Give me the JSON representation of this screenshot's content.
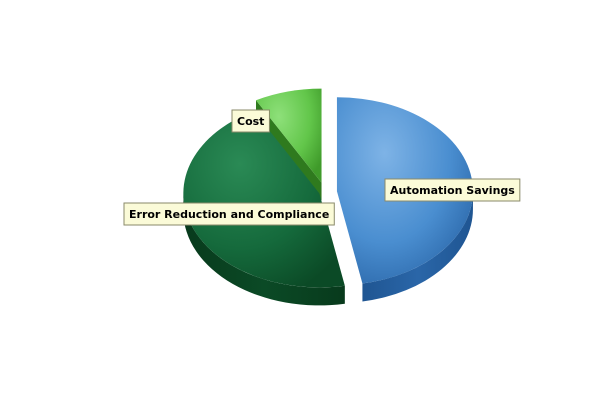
{
  "chart_data": {
    "type": "pie",
    "style": "3d-exploded",
    "title": "",
    "categories": [
      "Automation Savings",
      "Error Reduction and Compliance",
      "Cost"
    ],
    "values": [
      47,
      45,
      8
    ],
    "unit": "percent (estimated share)",
    "legend": "none",
    "colors": {
      "Automation Savings": {
        "light": "#7eb3e6",
        "mid": "#4a8ed0",
        "dark": "#2a66a8",
        "side": "#1f5592"
      },
      "Error Reduction and Compliance": {
        "light": "#2a8a55",
        "mid": "#156a3c",
        "dark": "#0b4a26",
        "side": "#083a1c"
      },
      "Cost": {
        "light": "#8ee07a",
        "mid": "#62c64a",
        "dark": "#3f9a2a",
        "side": "#2f7a1e"
      }
    }
  }
}
